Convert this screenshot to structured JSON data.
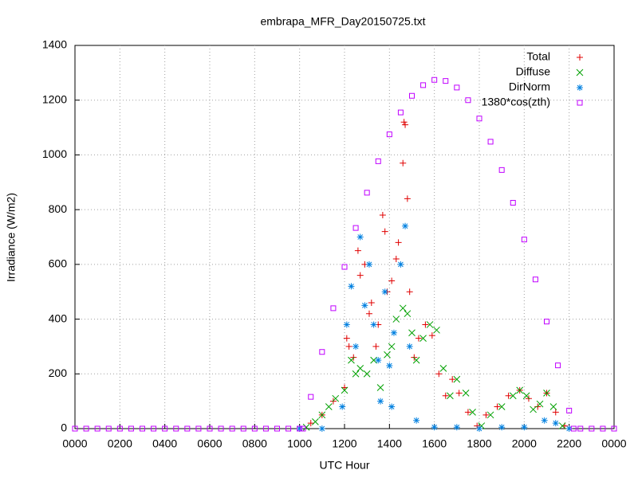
{
  "chart_data": {
    "type": "scatter",
    "title": "embrapa_MFR_Day20150725.txt",
    "x_label": "UTC Hour",
    "y_label": "Irradiance (W/m2)",
    "xlim": [
      0,
      24
    ],
    "xticks": [
      {
        "value": 0,
        "label": "0000"
      },
      {
        "value": 2,
        "label": "0200"
      },
      {
        "value": 4,
        "label": "0400"
      },
      {
        "value": 6,
        "label": "0600"
      },
      {
        "value": 8,
        "label": "0800"
      },
      {
        "value": 10,
        "label": "1000"
      },
      {
        "value": 12,
        "label": "1200"
      },
      {
        "value": 14,
        "label": "1400"
      },
      {
        "value": 16,
        "label": "1600"
      },
      {
        "value": 18,
        "label": "1800"
      },
      {
        "value": 20,
        "label": "2000"
      },
      {
        "value": 22,
        "label": "2200"
      },
      {
        "value": 24,
        "label": "0000"
      }
    ],
    "ylim": [
      0,
      1400
    ],
    "yticks": [
      0,
      200,
      400,
      600,
      800,
      1000,
      1200,
      1400
    ],
    "grid": true,
    "legend": "top-right",
    "series": [
      {
        "name": "Total",
        "color": "#e00000",
        "marker": "plus",
        "x": [
          10.5,
          11,
          11.5,
          12,
          12.1,
          12.2,
          12.4,
          12.6,
          12.7,
          12.9,
          13.1,
          13.2,
          13.4,
          13.5,
          13.7,
          13.8,
          13.9,
          14.1,
          14.3,
          14.4,
          14.6,
          14.65,
          14.7,
          14.8,
          14.9,
          15.1,
          15.3,
          15.6,
          15.9,
          16.2,
          16.5,
          16.8,
          17.1,
          17.5,
          17.9,
          18.3,
          18.8,
          19.3,
          19.8,
          20.2,
          20.6,
          21,
          21.4,
          21.8
        ],
        "values": [
          20,
          50,
          100,
          150,
          330,
          300,
          260,
          650,
          560,
          600,
          420,
          460,
          300,
          380,
          780,
          720,
          500,
          540,
          620,
          680,
          970,
          1120,
          1110,
          840,
          500,
          260,
          330,
          380,
          340,
          200,
          120,
          180,
          130,
          60,
          10,
          50,
          80,
          120,
          140,
          110,
          80,
          130,
          60,
          10
        ]
      },
      {
        "name": "Diffuse",
        "color": "#00a000",
        "marker": "cross",
        "x": [
          10.3,
          10.7,
          11,
          11.3,
          11.6,
          12,
          12.3,
          12.5,
          12.7,
          13,
          13.3,
          13.6,
          13.9,
          14.1,
          14.3,
          14.6,
          14.8,
          15,
          15.2,
          15.5,
          15.8,
          16.1,
          16.4,
          16.7,
          17,
          17.4,
          17.7,
          18.1,
          18.5,
          19,
          19.5,
          19.8,
          20.1,
          20.4,
          20.7,
          21,
          21.3,
          21.7
        ],
        "values": [
          5,
          25,
          50,
          80,
          110,
          140,
          250,
          200,
          220,
          200,
          250,
          150,
          270,
          300,
          400,
          440,
          420,
          350,
          250,
          330,
          380,
          360,
          220,
          120,
          180,
          130,
          60,
          10,
          50,
          80,
          120,
          140,
          120,
          70,
          90,
          130,
          80,
          10
        ]
      },
      {
        "name": "DirNorm",
        "color": "#0080e0",
        "marker": "star",
        "x": [
          10,
          11,
          11.9,
          12.1,
          12.3,
          12.5,
          12.7,
          12.9,
          13.1,
          13.3,
          13.5,
          13.6,
          13.8,
          14,
          14.1,
          14.2,
          14.5,
          14.7,
          14.9,
          15.2,
          16,
          17,
          18,
          19,
          20,
          20.9,
          21.4,
          22
        ],
        "values": [
          0,
          0,
          80,
          380,
          520,
          300,
          700,
          450,
          600,
          380,
          250,
          100,
          500,
          230,
          80,
          350,
          600,
          740,
          300,
          30,
          5,
          5,
          0,
          5,
          5,
          30,
          20,
          0
        ]
      },
      {
        "name": "1380*cos(zth)",
        "color": "#c000ff",
        "marker": "square",
        "x": [
          0,
          0.5,
          1,
          1.5,
          2,
          2.5,
          3,
          3.5,
          4,
          4.5,
          5,
          5.5,
          6,
          6.5,
          7,
          7.5,
          8,
          8.5,
          9,
          9.5,
          10,
          10.15,
          10.5,
          11,
          11.5,
          12,
          12.5,
          13,
          13.5,
          14,
          14.5,
          15,
          15.5,
          16,
          16.5,
          17,
          17.5,
          18,
          18.5,
          19,
          19.5,
          20,
          20.5,
          21,
          21.5,
          22,
          22.2,
          22.5,
          23,
          23.5,
          24
        ],
        "values": [
          0,
          0,
          0,
          0,
          0,
          0,
          0,
          0,
          0,
          0,
          0,
          0,
          0,
          0,
          0,
          0,
          0,
          0,
          0,
          0,
          0,
          0,
          116,
          280,
          440,
          591,
          733,
          862,
          977,
          1075,
          1155,
          1216,
          1255,
          1274,
          1270,
          1246,
          1200,
          1133,
          1048,
          945,
          825,
          691,
          545,
          391,
          231,
          66,
          0,
          0,
          0,
          0,
          0
        ]
      }
    ]
  }
}
